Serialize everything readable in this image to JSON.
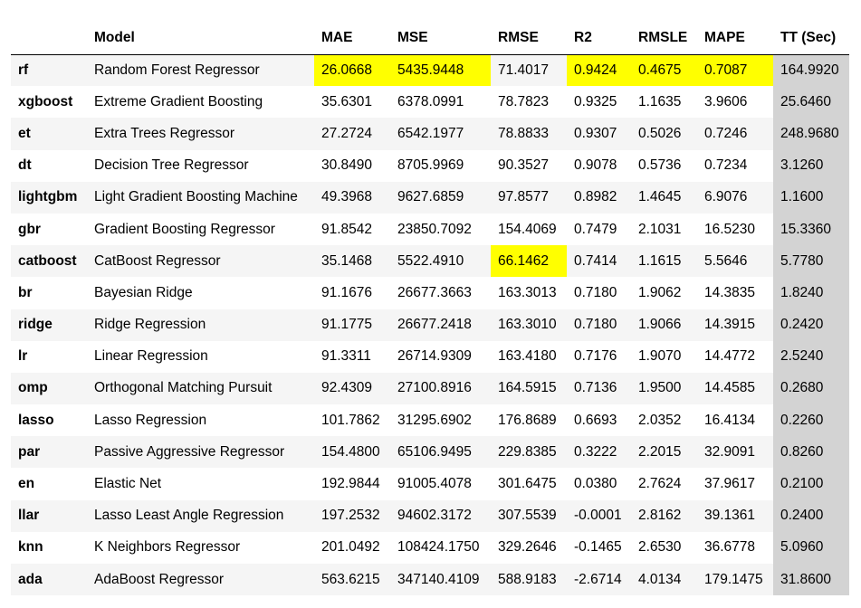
{
  "columns": [
    "",
    "Model",
    "MAE",
    "MSE",
    "RMSE",
    "R2",
    "RMSLE",
    "MAPE",
    "TT (Sec)"
  ],
  "rows": [
    {
      "key": "rf",
      "model": "Random Forest Regressor",
      "mae": "26.0668",
      "mse": "5435.9448",
      "rmse": "71.4017",
      "r2": "0.9424",
      "rmsle": "0.4675",
      "mape": "0.7087",
      "tt": "164.9920"
    },
    {
      "key": "xgboost",
      "model": "Extreme Gradient Boosting",
      "mae": "35.6301",
      "mse": "6378.0991",
      "rmse": "78.7823",
      "r2": "0.9325",
      "rmsle": "1.1635",
      "mape": "3.9606",
      "tt": "25.6460"
    },
    {
      "key": "et",
      "model": "Extra Trees Regressor",
      "mae": "27.2724",
      "mse": "6542.1977",
      "rmse": "78.8833",
      "r2": "0.9307",
      "rmsle": "0.5026",
      "mape": "0.7246",
      "tt": "248.9680"
    },
    {
      "key": "dt",
      "model": "Decision Tree Regressor",
      "mae": "30.8490",
      "mse": "8705.9969",
      "rmse": "90.3527",
      "r2": "0.9078",
      "rmsle": "0.5736",
      "mape": "0.7234",
      "tt": "3.1260"
    },
    {
      "key": "lightgbm",
      "model": "Light Gradient Boosting Machine",
      "mae": "49.3968",
      "mse": "9627.6859",
      "rmse": "97.8577",
      "r2": "0.8982",
      "rmsle": "1.4645",
      "mape": "6.9076",
      "tt": "1.1600"
    },
    {
      "key": "gbr",
      "model": "Gradient Boosting Regressor",
      "mae": "91.8542",
      "mse": "23850.7092",
      "rmse": "154.4069",
      "r2": "0.7479",
      "rmsle": "2.1031",
      "mape": "16.5230",
      "tt": "15.3360"
    },
    {
      "key": "catboost",
      "model": "CatBoost Regressor",
      "mae": "35.1468",
      "mse": "5522.4910",
      "rmse": "66.1462",
      "r2": "0.7414",
      "rmsle": "1.1615",
      "mape": "5.5646",
      "tt": "5.7780"
    },
    {
      "key": "br",
      "model": "Bayesian Ridge",
      "mae": "91.1676",
      "mse": "26677.3663",
      "rmse": "163.3013",
      "r2": "0.7180",
      "rmsle": "1.9062",
      "mape": "14.3835",
      "tt": "1.8240"
    },
    {
      "key": "ridge",
      "model": "Ridge Regression",
      "mae": "91.1775",
      "mse": "26677.2418",
      "rmse": "163.3010",
      "r2": "0.7180",
      "rmsle": "1.9066",
      "mape": "14.3915",
      "tt": "0.2420"
    },
    {
      "key": "lr",
      "model": "Linear Regression",
      "mae": "91.3311",
      "mse": "26714.9309",
      "rmse": "163.4180",
      "r2": "0.7176",
      "rmsle": "1.9070",
      "mape": "14.4772",
      "tt": "2.5240"
    },
    {
      "key": "omp",
      "model": "Orthogonal Matching Pursuit",
      "mae": "92.4309",
      "mse": "27100.8916",
      "rmse": "164.5915",
      "r2": "0.7136",
      "rmsle": "1.9500",
      "mape": "14.4585",
      "tt": "0.2680"
    },
    {
      "key": "lasso",
      "model": "Lasso Regression",
      "mae": "101.7862",
      "mse": "31295.6902",
      "rmse": "176.8689",
      "r2": "0.6693",
      "rmsle": "2.0352",
      "mape": "16.4134",
      "tt": "0.2260"
    },
    {
      "key": "par",
      "model": "Passive Aggressive Regressor",
      "mae": "154.4800",
      "mse": "65106.9495",
      "rmse": "229.8385",
      "r2": "0.3222",
      "rmsle": "2.2015",
      "mape": "32.9091",
      "tt": "0.8260"
    },
    {
      "key": "en",
      "model": "Elastic Net",
      "mae": "192.9844",
      "mse": "91005.4078",
      "rmse": "301.6475",
      "r2": "0.0380",
      "rmsle": "2.7624",
      "mape": "37.9617",
      "tt": "0.2100"
    },
    {
      "key": "llar",
      "model": "Lasso Least Angle Regression",
      "mae": "197.2532",
      "mse": "94602.3172",
      "rmse": "307.5539",
      "r2": "-0.0001",
      "rmsle": "2.8162",
      "mape": "39.1361",
      "tt": "0.2400"
    },
    {
      "key": "knn",
      "model": "K Neighbors Regressor",
      "mae": "201.0492",
      "mse": "108424.1750",
      "rmse": "329.2646",
      "r2": "-0.1465",
      "rmsle": "2.6530",
      "mape": "36.6778",
      "tt": "5.0960"
    },
    {
      "key": "ada",
      "model": "AdaBoost Regressor",
      "mae": "563.6215",
      "mse": "347140.4109",
      "rmse": "588.9183",
      "r2": "-2.6714",
      "rmsle": "4.0134",
      "mape": "179.1475",
      "tt": "31.8600"
    }
  ],
  "highlights": [
    {
      "row": 0,
      "col": "mae"
    },
    {
      "row": 0,
      "col": "mse"
    },
    {
      "row": 0,
      "col": "r2"
    },
    {
      "row": 0,
      "col": "rmsle"
    },
    {
      "row": 0,
      "col": "mape"
    },
    {
      "row": 6,
      "col": "rmse"
    }
  ],
  "colors": {
    "highlight": "#ffff00",
    "tt_column": "#d3d3d3",
    "row_stripe": "#f5f5f5"
  }
}
